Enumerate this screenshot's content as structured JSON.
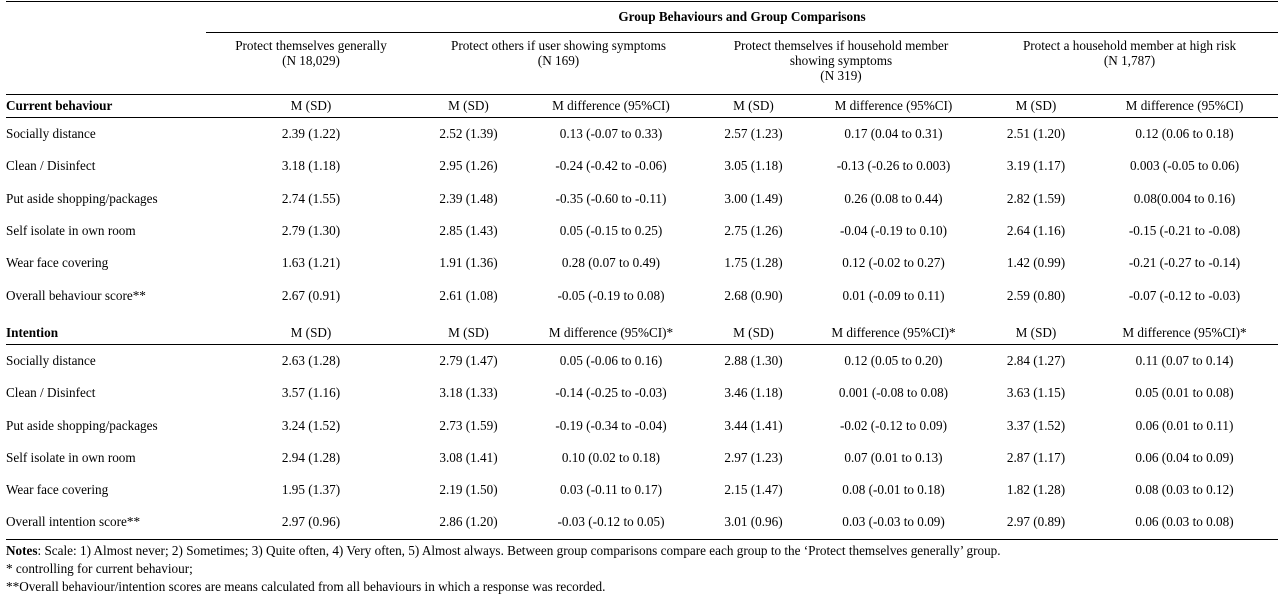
{
  "title": "Group Behaviours and Group Comparisons",
  "groups": [
    {
      "name": "Protect themselves generally",
      "n": "(N 18,029)"
    },
    {
      "name": "Protect others if user showing symptoms",
      "n": "(N 169)"
    },
    {
      "name": "Protect themselves if household member showing symptoms",
      "n": "(N 319)"
    },
    {
      "name": "Protect a household member at high risk",
      "n": "(N 1,787)"
    }
  ],
  "current": {
    "label": "Current behaviour",
    "headers": [
      "M (SD)",
      "M (SD)",
      "M difference (95%CI)",
      "M (SD)",
      "M difference (95%CI)",
      "M (SD)",
      "M difference (95%CI)"
    ],
    "rows": [
      {
        "label": "Socially distance",
        "cells": [
          "2.39 (1.22)",
          "2.52 (1.39)",
          "0.13 (-0.07 to 0.33)",
          "2.57 (1.23)",
          "0.17 (0.04 to 0.31)",
          "2.51 (1.20)",
          "0.12 (0.06 to 0.18)"
        ]
      },
      {
        "label": "Clean / Disinfect",
        "cells": [
          "3.18 (1.18)",
          "2.95 (1.26)",
          "-0.24 (-0.42 to -0.06)",
          "3.05 (1.18)",
          "-0.13 (-0.26 to 0.003)",
          "3.19 (1.17)",
          "0.003 (-0.05 to 0.06)"
        ]
      },
      {
        "label": "Put aside shopping/packages",
        "cells": [
          "2.74 (1.55)",
          "2.39 (1.48)",
          "-0.35 (-0.60 to -0.11)",
          "3.00 (1.49)",
          "0.26 (0.08 to 0.44)",
          "2.82 (1.59)",
          "0.08(0.004 to 0.16)"
        ]
      },
      {
        "label": "Self isolate in own room",
        "cells": [
          "2.79 (1.30)",
          "2.85 (1.43)",
          "0.05 (-0.15 to 0.25)",
          "2.75 (1.26)",
          "-0.04 (-0.19 to 0.10)",
          "2.64 (1.16)",
          "-0.15 (-0.21 to -0.08)"
        ]
      },
      {
        "label": "Wear face covering",
        "cells": [
          "1.63 (1.21)",
          "1.91 (1.36)",
          "0.28 (0.07 to 0.49)",
          "1.75 (1.28)",
          "0.12 (-0.02 to 0.27)",
          "1.42 (0.99)",
          "-0.21 (-0.27 to -0.14)"
        ]
      },
      {
        "label": "Overall behaviour score**",
        "cells": [
          "2.67 (0.91)",
          "2.61 (1.08)",
          "-0.05 (-0.19 to 0.08)",
          "2.68 (0.90)",
          "0.01 (-0.09 to 0.11)",
          "2.59 (0.80)",
          "-0.07 (-0.12 to -0.03)"
        ]
      }
    ]
  },
  "intention": {
    "label": "Intention",
    "headers": [
      "M (SD)",
      "M (SD)",
      "M difference (95%CI)*",
      "M (SD)",
      "M difference (95%CI)*",
      "M (SD)",
      "M difference (95%CI)*"
    ],
    "rows": [
      {
        "label": "Socially distance",
        "cells": [
          "2.63 (1.28)",
          "2.79 (1.47)",
          "0.05 (-0.06 to 0.16)",
          "2.88 (1.30)",
          "0.12 (0.05 to 0.20)",
          "2.84 (1.27)",
          "0.11 (0.07 to 0.14)"
        ]
      },
      {
        "label": "Clean / Disinfect",
        "cells": [
          "3.57 (1.16)",
          "3.18 (1.33)",
          "-0.14 (-0.25 to -0.03)",
          "3.46 (1.18)",
          "0.001 (-0.08 to 0.08)",
          "3.63 (1.15)",
          "0.05 (0.01 to 0.08)"
        ]
      },
      {
        "label": "Put aside shopping/packages",
        "cells": [
          "3.24 (1.52)",
          "2.73 (1.59)",
          "-0.19 (-0.34 to -0.04)",
          "3.44 (1.41)",
          "-0.02 (-0.12 to 0.09)",
          "3.37 (1.52)",
          "0.06 (0.01 to 0.11)"
        ]
      },
      {
        "label": "Self isolate in own room",
        "cells": [
          "2.94 (1.28)",
          "3.08 (1.41)",
          "0.10 (0.02 to 0.18)",
          "2.97 (1.23)",
          "0.07 (0.01 to 0.13)",
          "2.87 (1.17)",
          "0.06 (0.04 to 0.09)"
        ]
      },
      {
        "label": "Wear face covering",
        "cells": [
          "1.95 (1.37)",
          "2.19 (1.50)",
          "0.03 (-0.11 to 0.17)",
          "2.15 (1.47)",
          "0.08 (-0.01 to 0.18)",
          "1.82 (1.28)",
          "0.08 (0.03 to 0.12)"
        ]
      },
      {
        "label": "Overall intention score**",
        "cells": [
          "2.97 (0.96)",
          "2.86 (1.20)",
          "-0.03 (-0.12 to 0.05)",
          "3.01 (0.96)",
          "0.03 (-0.03 to 0.09)",
          "2.97 (0.89)",
          "0.06 (0.03 to 0.08)"
        ]
      }
    ]
  },
  "notes": {
    "label": "Notes",
    "line1": ": Scale: 1) Almost never; 2) Sometimes; 3) Quite often, 4) Very often, 5) Almost always. Between group comparisons compare each group to the ‘Protect themselves generally’ group.",
    "line2": "* controlling for current behaviour;",
    "line3": "**Overall behaviour/intention scores are means calculated from all behaviours in which a response was recorded."
  }
}
